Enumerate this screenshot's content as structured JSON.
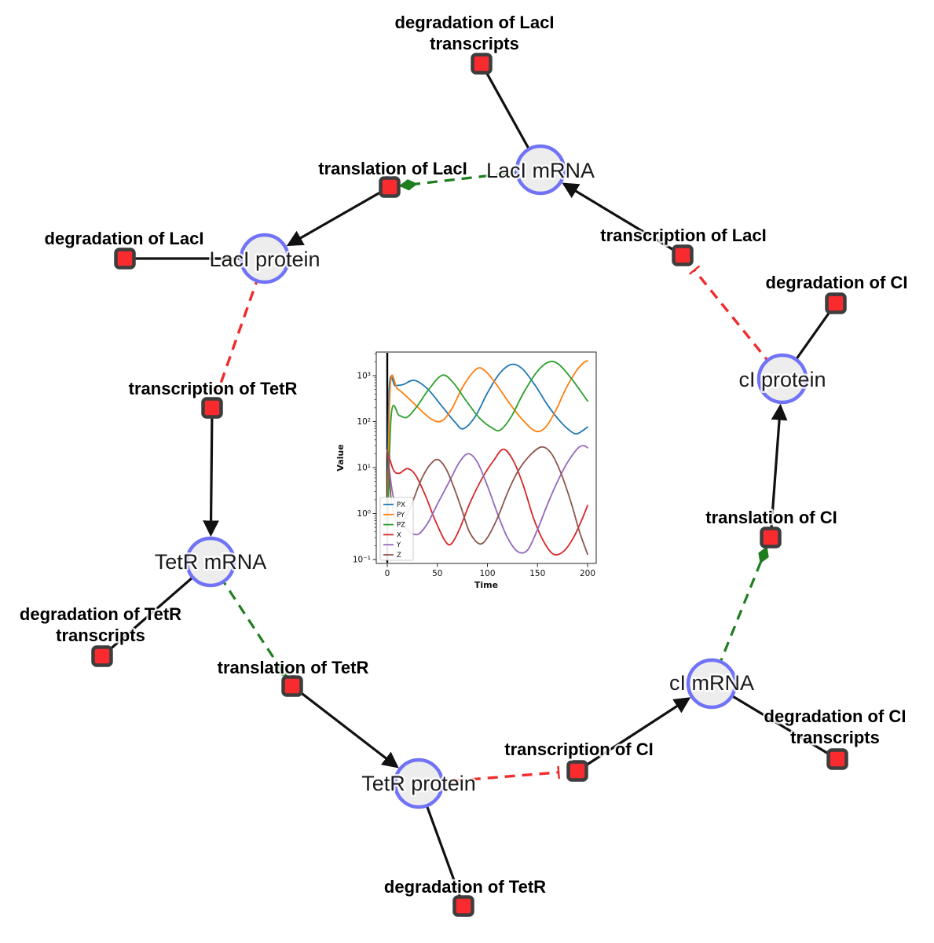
{
  "theme": {
    "species_fill": "#ededed",
    "species_stroke": "#7173f7",
    "reaction_fill": "#fa2b2f",
    "reaction_stroke": "#3d3d3d",
    "edge_black": "#111111",
    "edge_activation": "#1e7d1e",
    "edge_inhibition": "#f12b2b",
    "label_color": "#000000"
  },
  "diagram": {
    "species": [
      {
        "id": "laci-mrna",
        "label": "LacI mRNA"
      },
      {
        "id": "laci-protein",
        "label": "LacI protein"
      },
      {
        "id": "tetr-mrna",
        "label": "TetR mRNA"
      },
      {
        "id": "tetr-protein",
        "label": "TetR protein"
      },
      {
        "id": "ci-mrna",
        "label": "cI mRNA"
      },
      {
        "id": "ci-protein",
        "label": "cI protein"
      }
    ],
    "reactions": [
      {
        "id": "degradation-laci-transcripts",
        "lines": [
          "degradation of LacI",
          "transcripts"
        ]
      },
      {
        "id": "translation-laci",
        "lines": [
          "translation of LacI"
        ]
      },
      {
        "id": "degradation-laci",
        "lines": [
          "degradation of LacI"
        ]
      },
      {
        "id": "transcription-laci",
        "lines": [
          "transcription of LacI"
        ]
      },
      {
        "id": "degradation-ci",
        "lines": [
          "degradation of CI"
        ]
      },
      {
        "id": "transcription-tetr",
        "lines": [
          "transcription of TetR"
        ]
      },
      {
        "id": "degradation-tetr-transcripts",
        "lines": [
          "degradation of TetR",
          "transcripts"
        ]
      },
      {
        "id": "translation-tetr",
        "lines": [
          "translation of TetR"
        ]
      },
      {
        "id": "degradation-tetr",
        "lines": [
          "degradation of TetR"
        ]
      },
      {
        "id": "transcription-ci",
        "lines": [
          "transcription of CI"
        ]
      },
      {
        "id": "degradation-ci-transcripts",
        "lines": [
          "degradation of CI",
          "transcripts"
        ]
      },
      {
        "id": "translation-ci",
        "lines": [
          "translation of CI"
        ]
      }
    ]
  },
  "chart_data": {
    "type": "line",
    "xlabel": "Time",
    "ylabel": "Value",
    "yscale": "log",
    "xlim": [
      -11,
      209
    ],
    "ylim": [
      0.083,
      3200
    ],
    "xticks": [
      0,
      50,
      100,
      150,
      200
    ],
    "yticks": [
      1000,
      100,
      10,
      1,
      0.1
    ],
    "ytick_labels": [
      "10³",
      "10²",
      "10¹",
      "10⁰",
      "10⁻¹"
    ],
    "vline_x": 0,
    "legend_position": "lower-left",
    "grid": false,
    "series": [
      {
        "name": "PX",
        "color": "#1f77b4",
        "points": [
          [
            0,
            0.2
          ],
          [
            2,
            520
          ],
          [
            8,
            600
          ],
          [
            16,
            640
          ],
          [
            27,
            790
          ],
          [
            40,
            520
          ],
          [
            55,
            210
          ],
          [
            68,
            95
          ],
          [
            76,
            70
          ],
          [
            88,
            130
          ],
          [
            100,
            420
          ],
          [
            112,
            1100
          ],
          [
            124,
            1750
          ],
          [
            135,
            1400
          ],
          [
            148,
            600
          ],
          [
            160,
            230
          ],
          [
            172,
            105
          ],
          [
            183,
            62
          ],
          [
            190,
            55
          ],
          [
            200,
            76
          ]
        ]
      },
      {
        "name": "PY",
        "color": "#ff7f0e",
        "points": [
          [
            0,
            0.2
          ],
          [
            3,
            580
          ],
          [
            10,
            520
          ],
          [
            20,
            340
          ],
          [
            32,
            190
          ],
          [
            45,
            110
          ],
          [
            55,
            105
          ],
          [
            65,
            200
          ],
          [
            76,
            600
          ],
          [
            89,
            1400
          ],
          [
            98,
            1250
          ],
          [
            110,
            600
          ],
          [
            122,
            250
          ],
          [
            135,
            110
          ],
          [
            148,
            62
          ],
          [
            158,
            75
          ],
          [
            168,
            170
          ],
          [
            178,
            500
          ],
          [
            188,
            1200
          ],
          [
            196,
            1900
          ],
          [
            200,
            2100
          ]
        ]
      },
      {
        "name": "PZ",
        "color": "#2ca02c",
        "points": [
          [
            0,
            0.2
          ],
          [
            4,
            140
          ],
          [
            12,
            135
          ],
          [
            20,
            125
          ],
          [
            30,
            220
          ],
          [
            42,
            520
          ],
          [
            55,
            1020
          ],
          [
            66,
            700
          ],
          [
            78,
            300
          ],
          [
            92,
            120
          ],
          [
            105,
            72
          ],
          [
            113,
            66
          ],
          [
            124,
            130
          ],
          [
            136,
            420
          ],
          [
            150,
            1250
          ],
          [
            162,
            2000
          ],
          [
            172,
            1700
          ],
          [
            185,
            800
          ],
          [
            200,
            280
          ]
        ]
      },
      {
        "name": "X",
        "color": "#d62728",
        "points": [
          [
            0,
            24
          ],
          [
            6,
            9
          ],
          [
            12,
            7.5
          ],
          [
            20,
            9.5
          ],
          [
            28,
            7
          ],
          [
            38,
            2.5
          ],
          [
            48,
            0.7
          ],
          [
            58,
            0.25
          ],
          [
            64,
            0.22
          ],
          [
            72,
            0.45
          ],
          [
            82,
            1.6
          ],
          [
            95,
            6
          ],
          [
            106,
            14
          ],
          [
            116,
            25
          ],
          [
            126,
            14
          ],
          [
            136,
            4
          ],
          [
            146,
            0.8
          ],
          [
            156,
            0.25
          ],
          [
            166,
            0.13
          ],
          [
            176,
            0.15
          ],
          [
            186,
            0.3
          ],
          [
            195,
            0.8
          ],
          [
            200,
            1.5
          ]
        ]
      },
      {
        "name": "Y",
        "color": "#9467bd",
        "points": [
          [
            0,
            24
          ],
          [
            5,
            3
          ],
          [
            12,
            0.8
          ],
          [
            20,
            0.45
          ],
          [
            30,
            0.35
          ],
          [
            40,
            0.6
          ],
          [
            50,
            1.6
          ],
          [
            62,
            5
          ],
          [
            72,
            13
          ],
          [
            81,
            20
          ],
          [
            90,
            13
          ],
          [
            100,
            4
          ],
          [
            110,
            1
          ],
          [
            120,
            0.3
          ],
          [
            130,
            0.15
          ],
          [
            140,
            0.16
          ],
          [
            150,
            0.45
          ],
          [
            160,
            1.6
          ],
          [
            170,
            5
          ],
          [
            180,
            13
          ],
          [
            190,
            26
          ],
          [
            196,
            30
          ],
          [
            200,
            27
          ]
        ]
      },
      {
        "name": "Z",
        "color": "#8c564b",
        "points": [
          [
            0,
            24
          ],
          [
            4,
            2
          ],
          [
            10,
            0.6
          ],
          [
            18,
            0.8
          ],
          [
            26,
            2
          ],
          [
            34,
            5.5
          ],
          [
            42,
            11
          ],
          [
            50,
            15
          ],
          [
            58,
            10
          ],
          [
            66,
            4
          ],
          [
            74,
            1.3
          ],
          [
            82,
            0.4
          ],
          [
            92,
            0.22
          ],
          [
            100,
            0.3
          ],
          [
            110,
            0.8
          ],
          [
            120,
            2.8
          ],
          [
            130,
            8
          ],
          [
            142,
            18
          ],
          [
            154,
            28
          ],
          [
            164,
            20
          ],
          [
            174,
            7
          ],
          [
            184,
            1.6
          ],
          [
            192,
            0.4
          ],
          [
            200,
            0.13
          ]
        ]
      }
    ]
  }
}
